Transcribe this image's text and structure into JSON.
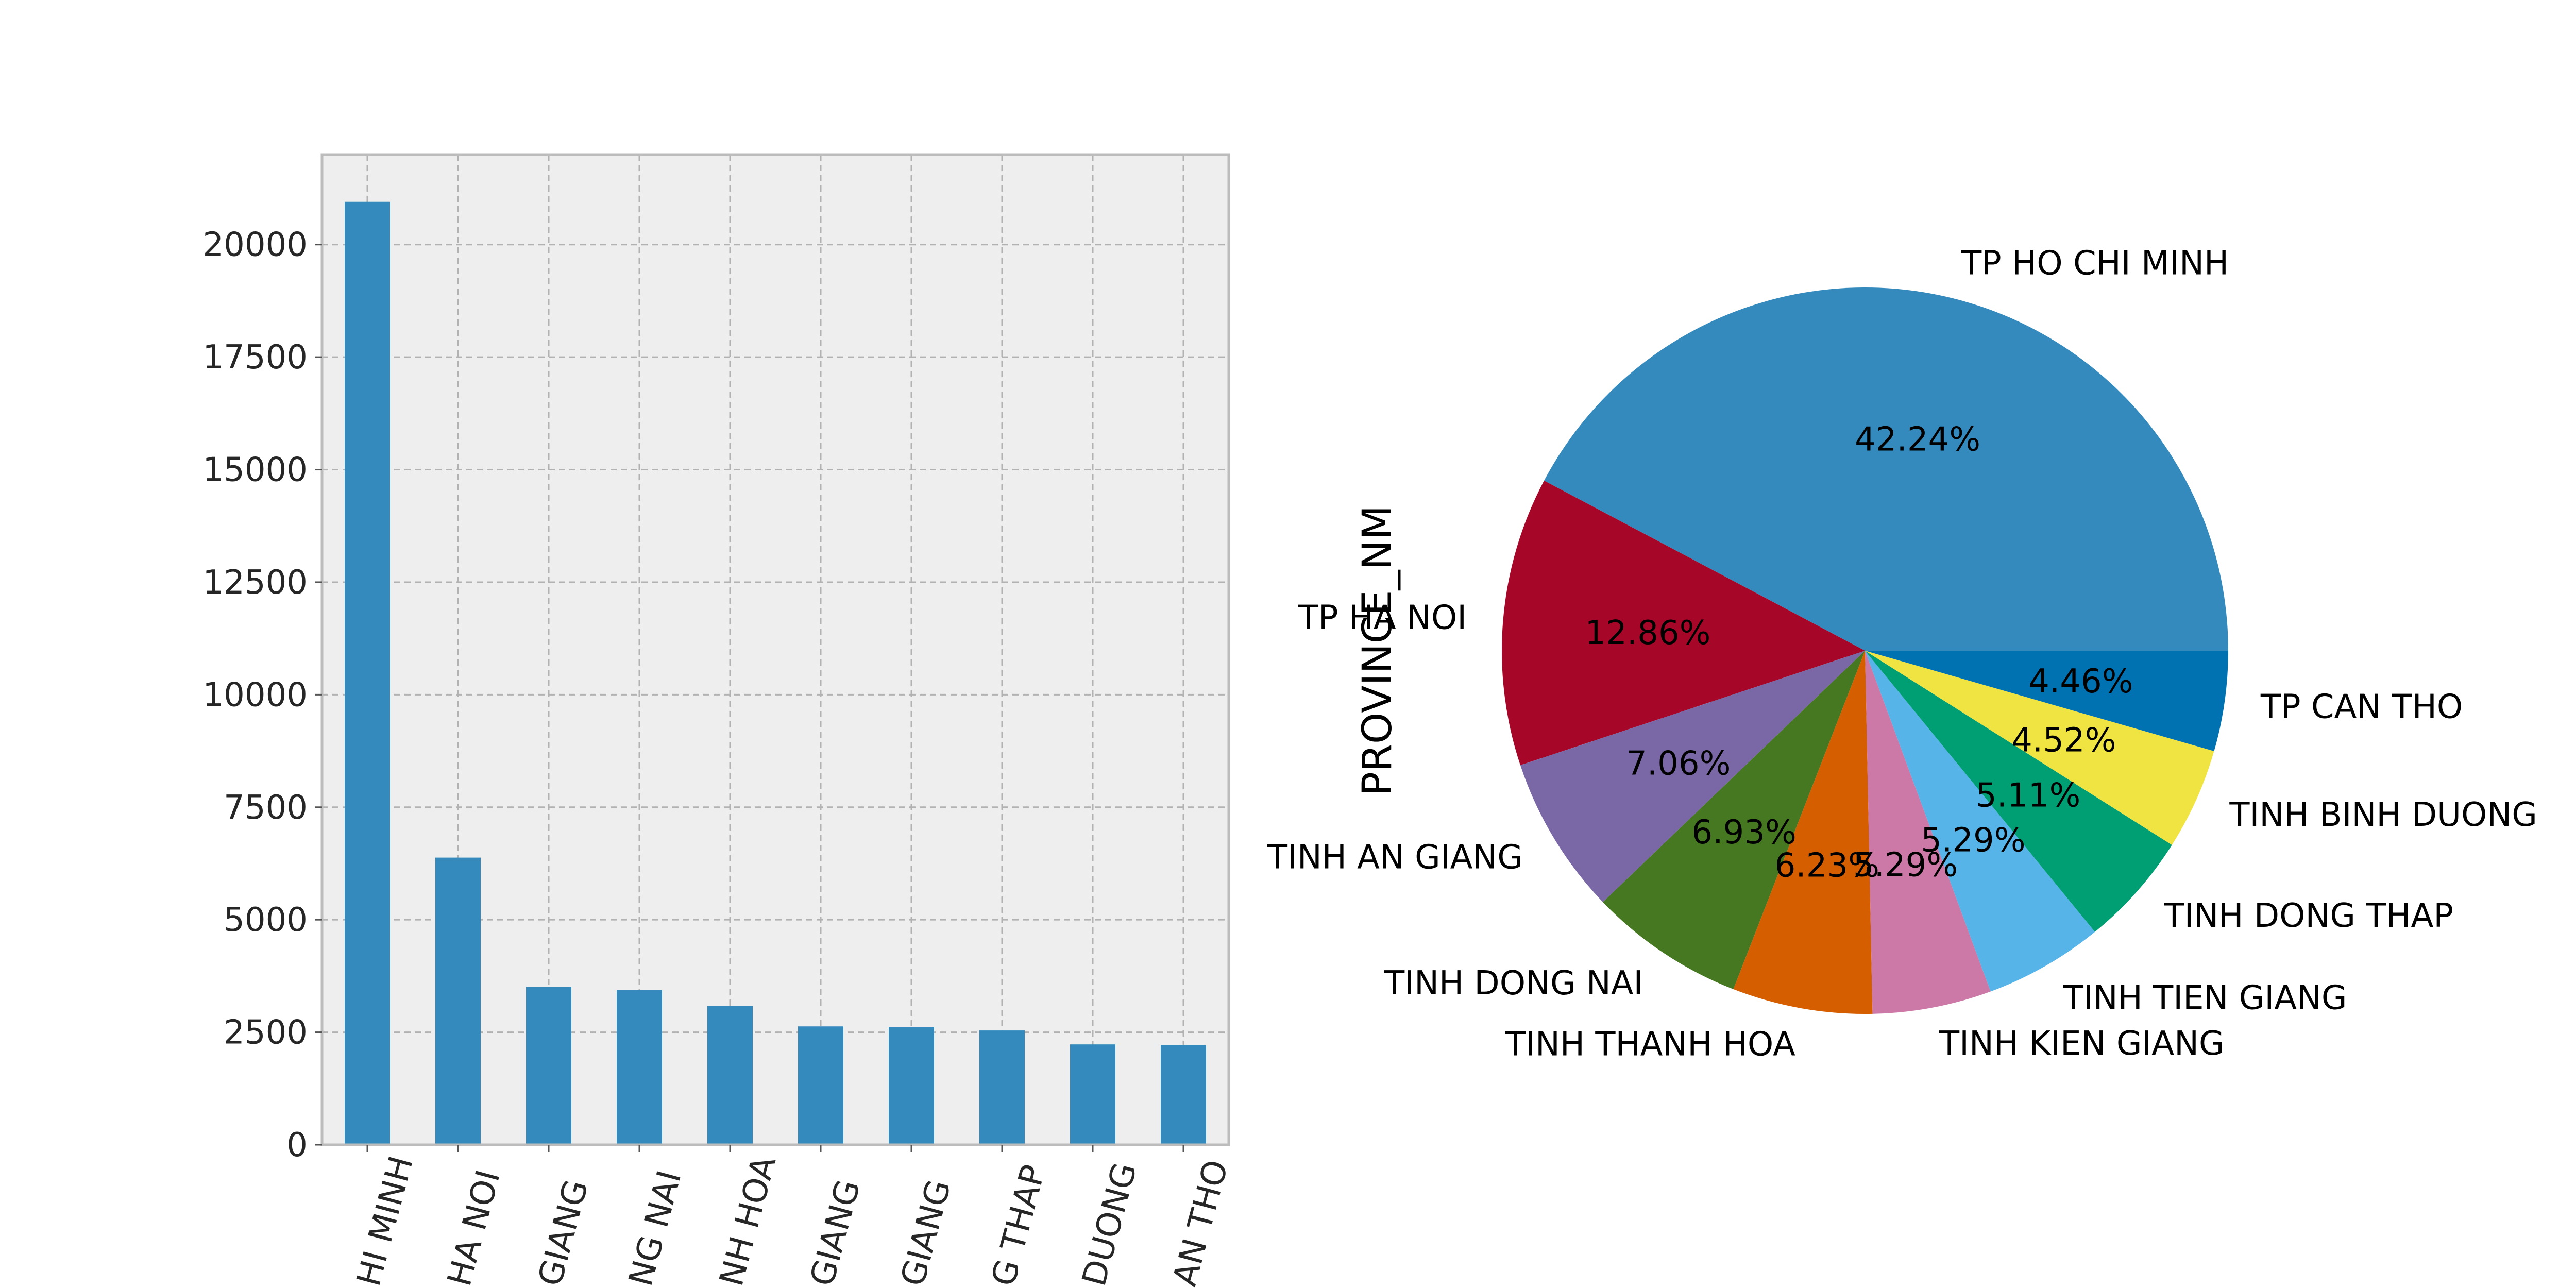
{
  "chart_data": [
    {
      "type": "bar",
      "categories": [
        "TP HO CHI MINH",
        "TP HA NOI",
        "TINH AN GIANG",
        "TINH DONG NAI",
        "TINH THANH HOA",
        "TINH KIEN GIANG",
        "TINH TIEN GIANG",
        "TINH DONG THAP",
        "TINH BINH DUONG",
        "TP CAN THO"
      ],
      "tick_labels_visible": [
        "HI MINH",
        "HA NOI",
        "GIANG",
        "NG NAI",
        "NH HOA",
        "GIANG",
        "GIANG",
        "G THAP",
        "DUONG",
        "AN THO"
      ],
      "values": [
        20950,
        6380,
        3510,
        3440,
        3090,
        2630,
        2620,
        2540,
        2230,
        2220
      ],
      "yticks": [
        "0",
        "2500",
        "5000",
        "7500",
        "10000",
        "12500",
        "15000",
        "17500",
        "20000"
      ],
      "ylim": [
        0,
        22000
      ],
      "grid": true,
      "colors": {
        "bar": "#348ABD",
        "background": "#EEEEEE",
        "grid": "#B2B2B2",
        "spine": "#BCBCBC"
      }
    },
    {
      "type": "pie",
      "ylabel": "PROVINCE_NM",
      "slices": [
        {
          "label": "TP HO CHI MINH",
          "pct": 42.24,
          "pct_text": "42.24%",
          "color": "#348ABD"
        },
        {
          "label": "TP HA NOI",
          "pct": 12.86,
          "pct_text": "12.86%",
          "color": "#A60628"
        },
        {
          "label": "TINH AN GIANG",
          "pct": 7.06,
          "pct_text": "7.06%",
          "color": "#7A68A6"
        },
        {
          "label": "TINH DONG NAI",
          "pct": 6.93,
          "pct_text": "6.93%",
          "color": "#467821"
        },
        {
          "label": "TINH THANH HOA",
          "pct": 6.23,
          "pct_text": "6.23%",
          "color": "#D55E00"
        },
        {
          "label": "TINH KIEN GIANG",
          "pct": 5.29,
          "pct_text": "5.29%",
          "color": "#CC79A7"
        },
        {
          "label": "TINH TIEN GIANG",
          "pct": 5.29,
          "pct_text": "5.29%",
          "color": "#56B4E9"
        },
        {
          "label": "TINH DONG THAP",
          "pct": 5.11,
          "pct_text": "5.11%",
          "color": "#009E73"
        },
        {
          "label": "TINH BINH DUONG",
          "pct": 4.52,
          "pct_text": "4.52%",
          "color": "#F0E442"
        },
        {
          "label": "TP CAN THO",
          "pct": 4.46,
          "pct_text": "4.46%",
          "color": "#0072B2"
        }
      ]
    }
  ]
}
